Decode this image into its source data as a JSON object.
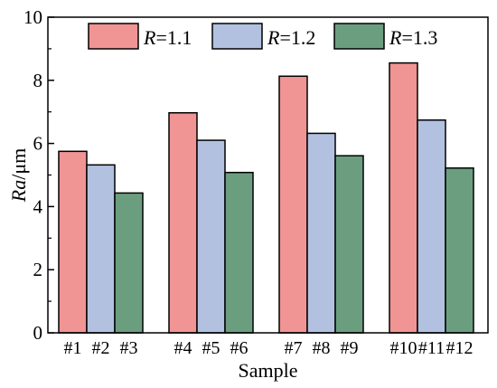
{
  "chart_data": {
    "type": "bar",
    "xlabel": "Sample",
    "ylabel": "Ra/μm",
    "ylim": [
      0,
      10
    ],
    "yticks": [
      0,
      2,
      4,
      6,
      8,
      10
    ],
    "grid": false,
    "legend_position": "top",
    "groups": [
      {
        "labels": [
          "#1",
          "#2",
          "#3"
        ],
        "values": [
          5.75,
          5.32,
          4.43
        ]
      },
      {
        "labels": [
          "#4",
          "#5",
          "#6"
        ],
        "values": [
          6.97,
          6.1,
          5.08
        ]
      },
      {
        "labels": [
          "#7",
          "#8",
          "#9"
        ],
        "values": [
          8.13,
          6.32,
          5.61
        ]
      },
      {
        "labels": [
          "#10",
          "#11",
          "#12"
        ],
        "values": [
          8.55,
          6.74,
          5.22
        ]
      }
    ],
    "series": [
      {
        "name": "R=1.1",
        "legend_var": "R",
        "legend_rest": "=1.1",
        "color": "#f09494"
      },
      {
        "name": "R=1.2",
        "legend_var": "R",
        "legend_rest": "=1.2",
        "color": "#b3c1e1"
      },
      {
        "name": "R=1.3",
        "legend_var": "R",
        "legend_rest": "=1.3",
        "color": "#6b9e7f"
      }
    ]
  }
}
